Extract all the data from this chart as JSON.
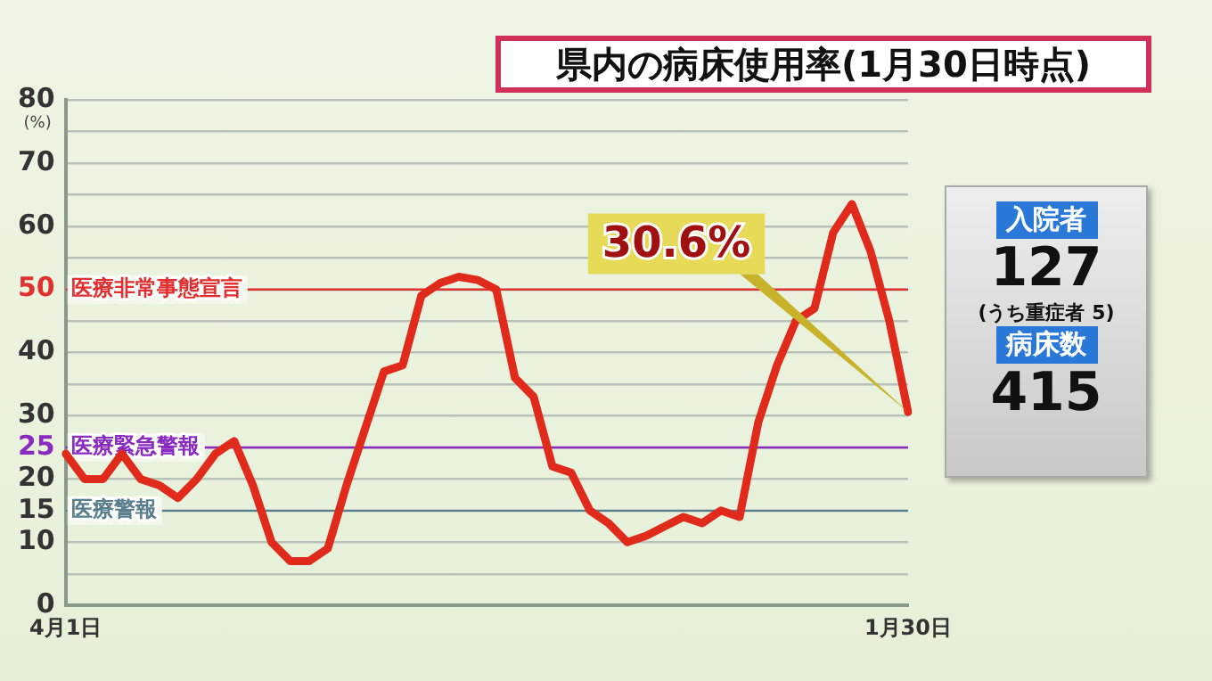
{
  "chart_data": [
    {
      "type": "line",
      "title": "県内の病床使用率(1月30日時点)",
      "ylabel": "(%)",
      "categories": [
        "4月1日",
        null,
        null,
        null,
        null,
        null,
        null,
        null,
        null,
        null,
        null,
        null,
        null,
        null,
        null,
        null,
        null,
        null,
        null,
        null,
        null,
        null,
        null,
        null,
        null,
        null,
        null,
        null,
        null,
        null,
        null,
        null,
        null,
        null,
        null,
        null,
        null,
        null,
        null,
        null,
        null,
        null,
        null,
        null,
        null,
        "1月30日"
      ],
      "series": [
        {
          "color": "#e02a1c",
          "values": [
            24,
            20,
            20,
            24,
            20,
            19,
            17,
            20,
            24,
            26,
            19,
            10,
            7,
            7,
            9,
            19,
            28,
            37,
            38,
            49,
            51,
            52,
            51.5,
            50,
            36,
            33,
            22,
            21,
            15,
            13,
            10,
            11,
            12.5,
            14,
            13,
            15,
            14,
            29,
            38,
            45,
            47,
            59,
            63.5,
            56,
            45,
            30.6
          ]
        }
      ],
      "ylim": [
        0,
        80
      ],
      "yticks": [
        0,
        {
          "value": 5,
          "label": null
        },
        10,
        15,
        20,
        25,
        30,
        {
          "value": 35,
          "label": null
        },
        40,
        {
          "value": 45,
          "label": null
        },
        50,
        {
          "value": 55,
          "label": null
        },
        60,
        {
          "value": 65,
          "label": null
        },
        70,
        {
          "value": 75,
          "label": null
        },
        80
      ],
      "grid": "y",
      "legend": false,
      "marker": "none",
      "line_style": "solid",
      "ref_lines": [
        {
          "axis": "y",
          "value": 50,
          "label": "医療非常事態宣言",
          "color": "#e03030"
        },
        {
          "axis": "y",
          "value": 25,
          "label": "医療緊急警報",
          "color": "#8a2bc0"
        },
        {
          "axis": "y",
          "value": 15,
          "label": "医療警報",
          "color": "#5a7f8c"
        }
      ],
      "annotations": [
        "30.6%"
      ]
    },
    {
      "type": "other",
      "annotations": [
        "入院者",
        "127",
        "(うち重症者 5)",
        "病床数",
        "415"
      ]
    }
  ]
}
